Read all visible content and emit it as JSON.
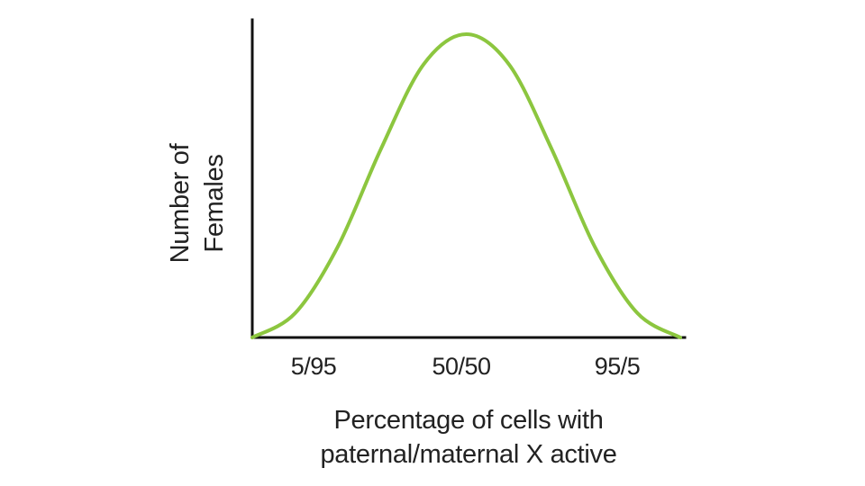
{
  "chart_data": {
    "type": "line",
    "shape": "bell-shaped (normal) distribution",
    "x_ticks": [
      "5/95",
      "50/50",
      "95/5"
    ],
    "xlabel_lines": [
      "Percentage of cells with",
      "paternal/maternal X active"
    ],
    "ylabel_lines": [
      "Number of",
      "Females"
    ],
    "series": [
      {
        "x": [
          0,
          10,
          20,
          30,
          40,
          50,
          60,
          70,
          80,
          90,
          100
        ],
        "y": [
          0,
          8,
          30,
          62,
          90,
          100,
          90,
          62,
          30,
          8,
          0
        ]
      }
    ],
    "xlim": [
      0,
      100
    ],
    "ylim": [
      0,
      100
    ],
    "line_color": "#8cc63f",
    "axis_color": "#111111",
    "grid": false,
    "legend": "none"
  }
}
